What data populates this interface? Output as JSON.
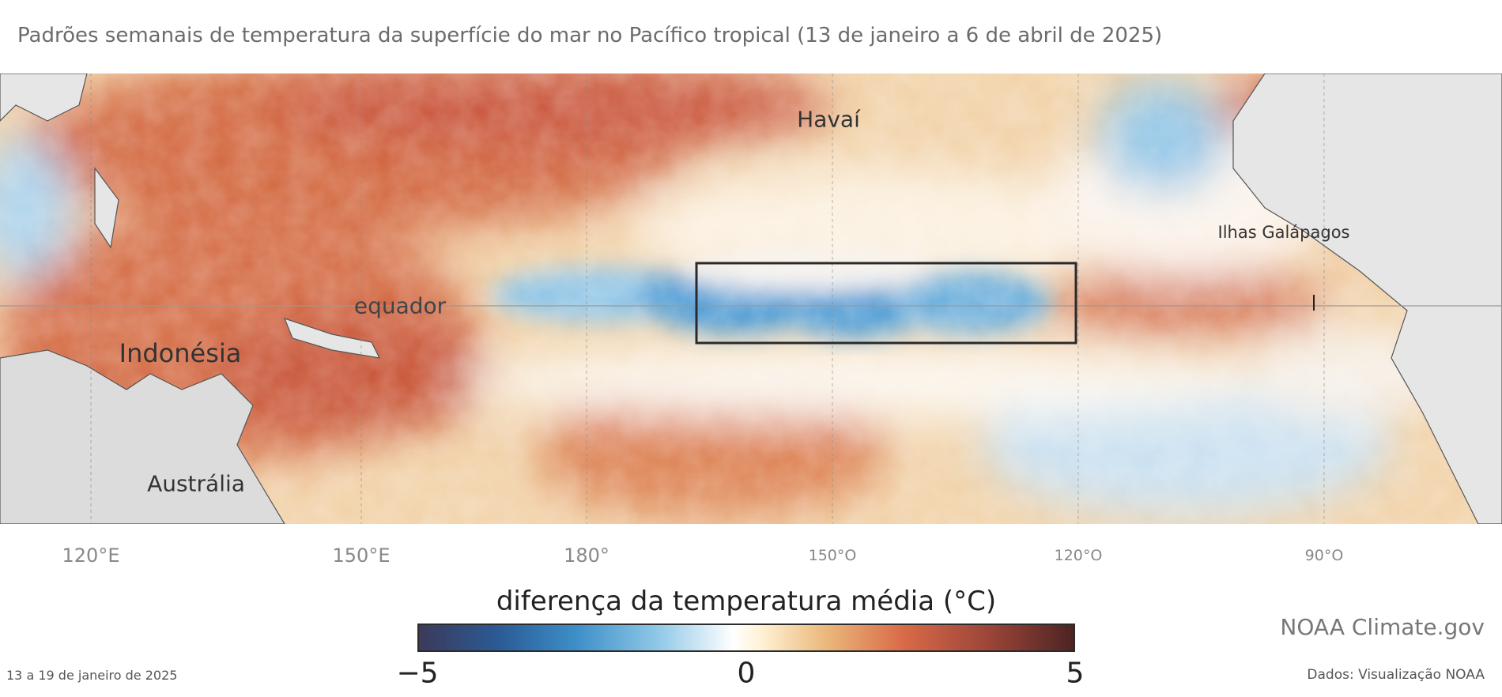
{
  "title": "Padrões semanais de temperatura da superfície do mar no Pacífico tropical (13 de janeiro a 6 de abril de 2025)",
  "map": {
    "labels": {
      "hawaii": "Havaí",
      "galapagos": "Ilhas Galápagos",
      "equator": "equador",
      "indonesia": "Indonésia",
      "australia": "Austrália"
    },
    "longitude_ticks": [
      "120°E",
      "150°E",
      "180°",
      "150°O",
      "120°O",
      "90°O"
    ],
    "highlight_box": "Niño 3.4 region outline",
    "colors": {
      "land": "#e6e6e6",
      "warm": "#d2603c",
      "cool": "#4a9ad4",
      "neutral": "#fbf3e6"
    }
  },
  "colorbar": {
    "title": "diferença da temperatura média (°C)",
    "min_label": "−5",
    "mid_label": "0",
    "max_label": "5",
    "range": [
      -5,
      5
    ]
  },
  "footer": {
    "date": "13 a 19 de janeiro de 2025",
    "brand": "NOAA Climate.gov",
    "source": "Dados: Visualização NOAA"
  }
}
